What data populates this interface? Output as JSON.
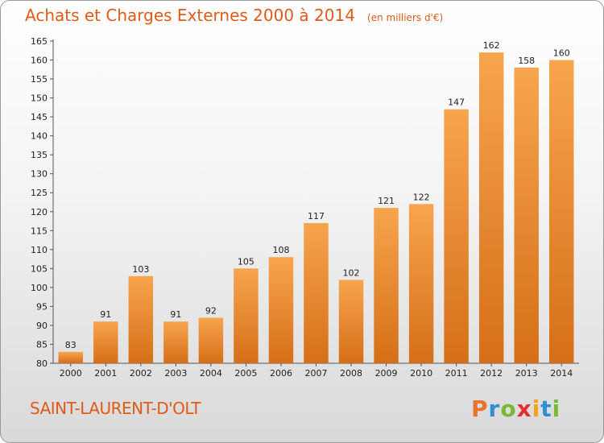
{
  "chart_data": {
    "type": "bar",
    "title": "Achats et Charges Externes 2000 à 2014",
    "subtitle": "(en milliers d'€)",
    "categories": [
      "2000",
      "2001",
      "2002",
      "2003",
      "2004",
      "2005",
      "2006",
      "2007",
      "2008",
      "2009",
      "2010",
      "2011",
      "2012",
      "2013",
      "2014"
    ],
    "values": [
      83,
      91,
      103,
      91,
      92,
      105,
      108,
      117,
      102,
      121,
      122,
      147,
      162,
      158,
      160
    ],
    "ylim": [
      80,
      165
    ],
    "yticks": [
      80,
      85,
      90,
      95,
      100,
      105,
      110,
      115,
      120,
      125,
      130,
      135,
      140,
      145,
      150,
      155,
      160,
      165
    ],
    "grid": false,
    "bar_color_light": "#f7a54e",
    "bar_color_dark": "#d56f17"
  },
  "place_name": "SAINT-LAURENT-D'OLT",
  "logo": {
    "letters": [
      "P",
      "r",
      "o",
      "x",
      "i",
      "t",
      "i"
    ],
    "colors": [
      "#e8732c",
      "#2f8fd0",
      "#79b935",
      "#e0312f",
      "#f0a21b",
      "#2f8fd0",
      "#79b935"
    ]
  },
  "title_color": "#e05a18"
}
